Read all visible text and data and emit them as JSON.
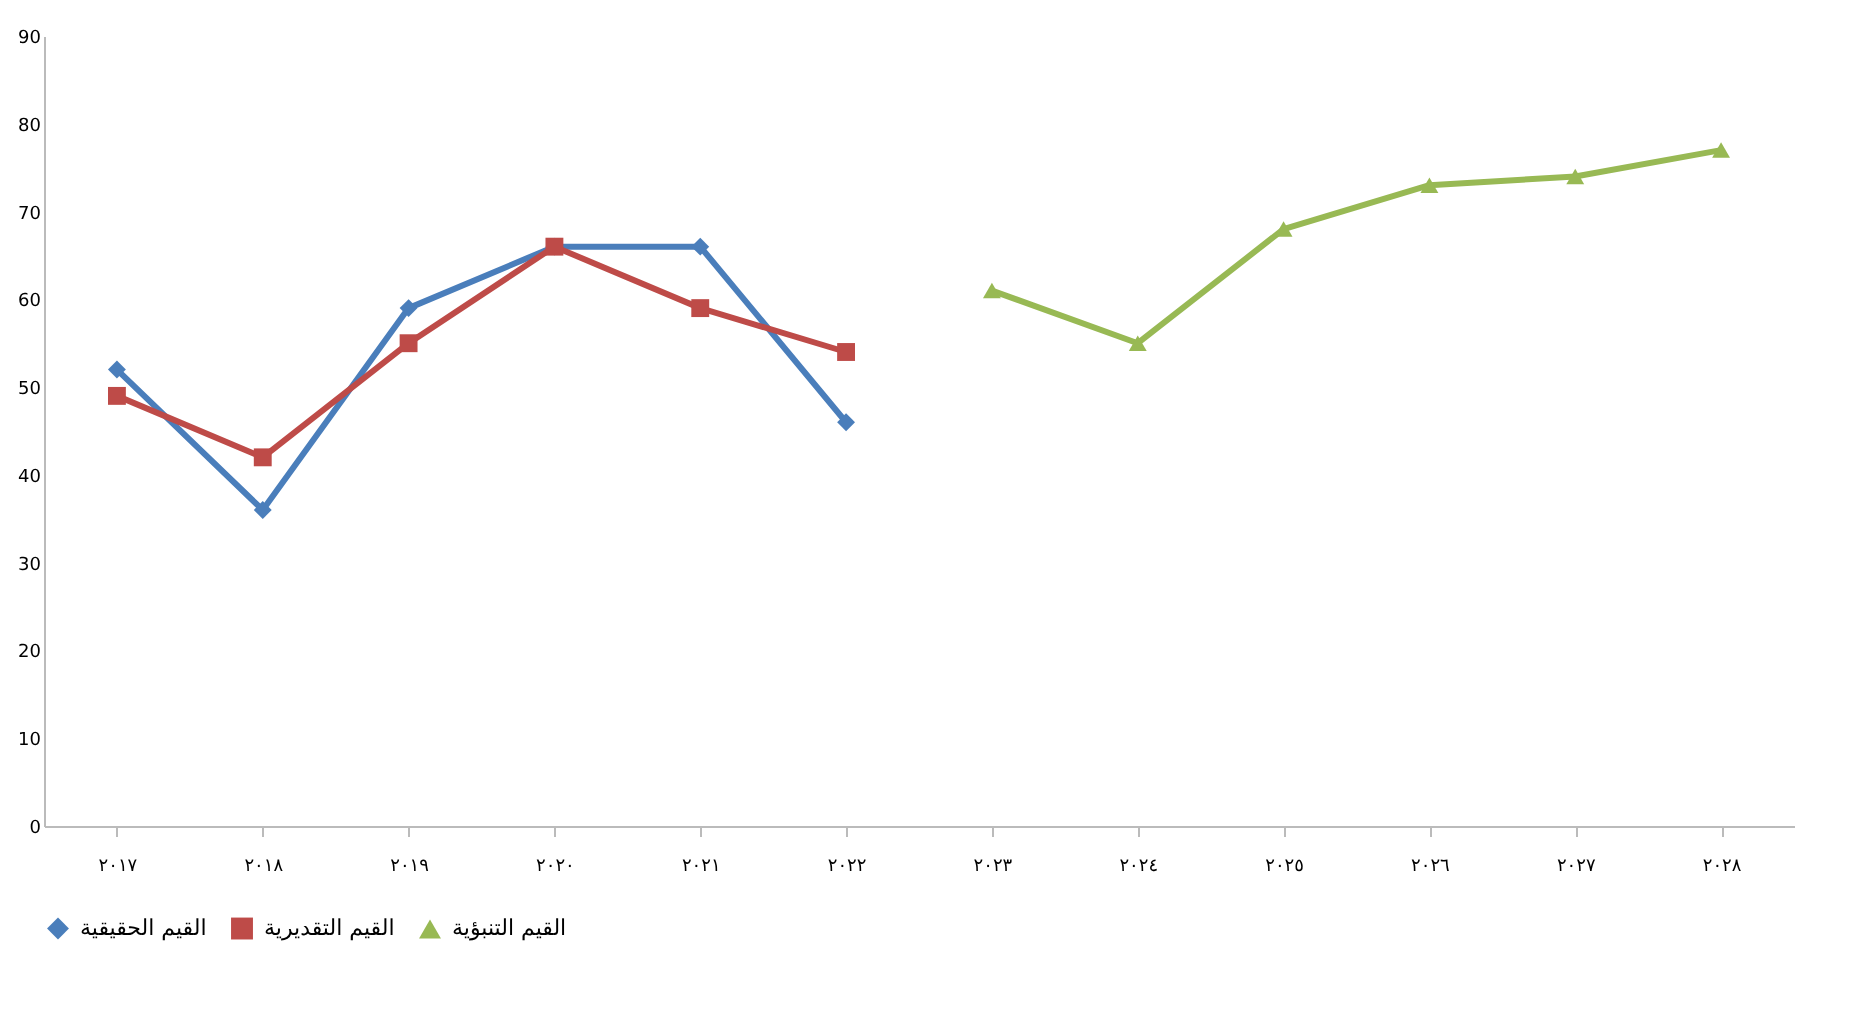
{
  "chart_data": {
    "type": "line",
    "categories": [
      "٢٠١٧",
      "٢٠١٨",
      "٢٠١٩",
      "٢٠٢٠",
      "٢٠٢١",
      "٢٠٢٢",
      "٢٠٢٣",
      "٢٠٢٤",
      "٢٠٢٥",
      "٢٠٢٦",
      "٢٠٢٧",
      "٢٠٢٨"
    ],
    "series": [
      {
        "name": "القيم الحقيقية",
        "color": "#4a7ebb",
        "marker": "diamond",
        "values": [
          52,
          36,
          59,
          66,
          66,
          46,
          null,
          null,
          null,
          null,
          null,
          null
        ]
      },
      {
        "name": "القيم التقديرية",
        "color": "#be4b48",
        "marker": "square",
        "values": [
          49,
          42,
          55,
          66,
          59,
          54,
          null,
          null,
          null,
          null,
          null,
          null
        ]
      },
      {
        "name": "القيم التنبؤية",
        "color": "#98b954",
        "marker": "triangle",
        "values": [
          null,
          null,
          null,
          null,
          null,
          null,
          61,
          55,
          68,
          73,
          74,
          77
        ]
      }
    ],
    "ylim": [
      0,
      90
    ],
    "yticks": [
      0,
      10,
      20,
      30,
      40,
      50,
      60,
      70,
      80,
      90
    ],
    "grid": false,
    "legend": "bottom",
    "line_style": "solid"
  }
}
